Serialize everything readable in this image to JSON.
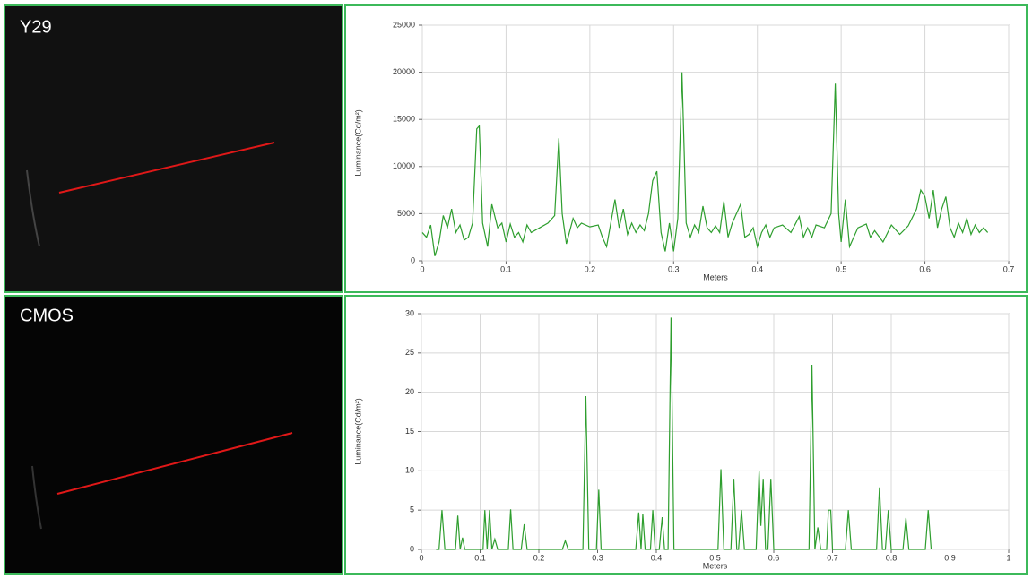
{
  "panels": [
    {
      "label": "Y29"
    },
    {
      "label": "CMOS"
    }
  ],
  "chart_data": [
    {
      "type": "line",
      "xlabel": "Meters",
      "ylabel": "Luminance(Cd/m²)",
      "grid": true,
      "xlim": [
        0,
        0.7
      ],
      "xticks": [
        0,
        0.1,
        0.2,
        0.3,
        0.4,
        0.5,
        0.6,
        0.7
      ],
      "ylim": [
        0,
        25000
      ],
      "yticks": [
        0,
        5000,
        10000,
        15000,
        20000,
        25000
      ],
      "x": [
        0,
        0.005,
        0.01,
        0.015,
        0.02,
        0.025,
        0.03,
        0.035,
        0.04,
        0.045,
        0.05,
        0.055,
        0.06,
        0.065,
        0.068,
        0.072,
        0.078,
        0.083,
        0.09,
        0.095,
        0.1,
        0.105,
        0.11,
        0.115,
        0.12,
        0.125,
        0.13,
        0.14,
        0.15,
        0.158,
        0.163,
        0.167,
        0.172,
        0.18,
        0.185,
        0.19,
        0.2,
        0.21,
        0.215,
        0.22,
        0.225,
        0.23,
        0.235,
        0.24,
        0.245,
        0.25,
        0.255,
        0.26,
        0.265,
        0.27,
        0.275,
        0.28,
        0.285,
        0.29,
        0.295,
        0.3,
        0.305,
        0.31,
        0.315,
        0.32,
        0.325,
        0.33,
        0.335,
        0.34,
        0.345,
        0.35,
        0.355,
        0.36,
        0.365,
        0.37,
        0.38,
        0.385,
        0.39,
        0.395,
        0.4,
        0.405,
        0.41,
        0.415,
        0.42,
        0.43,
        0.44,
        0.45,
        0.455,
        0.46,
        0.465,
        0.47,
        0.48,
        0.488,
        0.493,
        0.497,
        0.5,
        0.505,
        0.51,
        0.52,
        0.53,
        0.535,
        0.54,
        0.55,
        0.56,
        0.57,
        0.58,
        0.59,
        0.595,
        0.6,
        0.605,
        0.61,
        0.615,
        0.62,
        0.625,
        0.63,
        0.635,
        0.64,
        0.645,
        0.65,
        0.655,
        0.66,
        0.665,
        0.67,
        0.675
      ],
      "series": [
        {
          "color": "#2e9e2e",
          "values": [
            3000,
            2500,
            3800,
            500,
            2000,
            4800,
            3500,
            5500,
            3000,
            3800,
            2200,
            2500,
            4000,
            14000,
            14300,
            4000,
            1500,
            6000,
            3500,
            4000,
            2000,
            3900,
            2500,
            3000,
            2000,
            3800,
            3000,
            3500,
            4000,
            4800,
            13000,
            5000,
            1800,
            4500,
            3500,
            4000,
            3600,
            3800,
            2500,
            1500,
            4000,
            6500,
            3500,
            5500,
            2800,
            4000,
            3000,
            3800,
            3200,
            5000,
            8500,
            9500,
            3000,
            1000,
            4000,
            1000,
            4500,
            20000,
            4000,
            2500,
            3800,
            3000,
            5800,
            3500,
            3000,
            3700,
            3000,
            6300,
            2500,
            4000,
            6000,
            2500,
            2800,
            3500,
            1500,
            3000,
            3800,
            2500,
            3500,
            3800,
            3000,
            4700,
            2500,
            3500,
            2500,
            3800,
            3500,
            5000,
            18800,
            5000,
            2000,
            6500,
            1500,
            3500,
            3900,
            2500,
            3200,
            2000,
            3800,
            2800,
            3700,
            5500,
            7500,
            6800,
            4500,
            7500,
            3500,
            5500,
            6800,
            3500,
            2500,
            4000,
            3000,
            4500,
            2800,
            3800,
            3000,
            3500,
            3000
          ]
        }
      ]
    },
    {
      "type": "line",
      "xlabel": "Meters",
      "ylabel": "Luminance(Cd/m²)",
      "grid": true,
      "xlim": [
        0,
        1
      ],
      "xticks": [
        0,
        0.1,
        0.2,
        0.3,
        0.4,
        0.5,
        0.6,
        0.7,
        0.8,
        0.9,
        1
      ],
      "ylim": [
        0,
        30
      ],
      "yticks": [
        0,
        5,
        10,
        15,
        20,
        25,
        30
      ],
      "x": [
        0.025,
        0.03,
        0.035,
        0.04,
        0.058,
        0.062,
        0.066,
        0.07,
        0.074,
        0.105,
        0.108,
        0.112,
        0.116,
        0.12,
        0.125,
        0.13,
        0.148,
        0.152,
        0.156,
        0.17,
        0.175,
        0.18,
        0.24,
        0.245,
        0.25,
        0.275,
        0.28,
        0.285,
        0.298,
        0.302,
        0.306,
        0.365,
        0.37,
        0.374,
        0.377,
        0.381,
        0.39,
        0.394,
        0.398,
        0.405,
        0.41,
        0.414,
        0.42,
        0.425,
        0.43,
        0.505,
        0.51,
        0.515,
        0.527,
        0.532,
        0.537,
        0.54,
        0.545,
        0.55,
        0.57,
        0.575,
        0.578,
        0.582,
        0.586,
        0.59,
        0.595,
        0.6,
        0.66,
        0.665,
        0.67,
        0.675,
        0.68,
        0.69,
        0.693,
        0.697,
        0.7,
        0.722,
        0.727,
        0.732,
        0.775,
        0.78,
        0.785,
        0.79,
        0.795,
        0.8,
        0.82,
        0.825,
        0.83,
        0.858,
        0.863,
        0.868
      ],
      "series": [
        {
          "color": "#2e9e2e",
          "values": [
            0,
            0,
            5,
            0,
            0,
            4.3,
            0,
            1.5,
            0,
            0,
            5,
            0,
            5,
            0,
            1.3,
            0,
            0,
            5.1,
            0,
            0,
            3.2,
            0,
            0,
            1.1,
            0,
            0,
            19.5,
            0,
            0,
            7.6,
            0,
            0,
            4.7,
            0,
            4.5,
            0,
            0,
            5,
            0,
            0,
            4.1,
            0,
            0,
            29.5,
            0,
            0,
            10.2,
            0,
            0,
            9,
            0,
            0,
            5,
            0,
            0,
            10,
            3,
            9,
            0,
            0,
            9,
            0,
            0,
            23.5,
            0,
            2.8,
            0,
            0,
            5,
            5,
            0,
            0,
            5,
            0,
            0,
            7.9,
            0,
            0,
            5,
            0,
            0,
            4,
            0,
            0,
            5,
            0
          ]
        }
      ]
    }
  ]
}
